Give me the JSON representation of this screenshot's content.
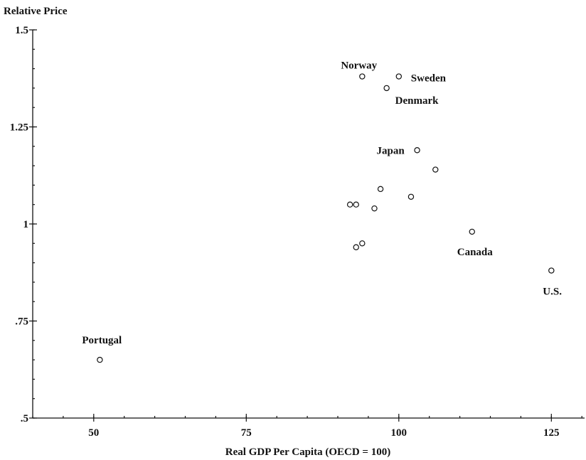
{
  "chart_data": {
    "type": "scatter",
    "title": "",
    "xlabel": "Real GDP Per Capita (OECD = 100)",
    "ylabel": "Relative Price",
    "xlim": [
      40,
      140
    ],
    "ylim": [
      0.5,
      1.5
    ],
    "grid": false,
    "legend": "none",
    "x_ticks": [
      50,
      75,
      100,
      125
    ],
    "x_tick_labels": [
      "50",
      "75",
      "100",
      "125"
    ],
    "x_minor_step": 5,
    "y_ticks": [
      0.5,
      0.75,
      1.0,
      1.25,
      1.5
    ],
    "y_tick_labels": [
      ".5",
      ".75",
      "1",
      "1.25",
      "1.5"
    ],
    "y_minor_step": 0.05,
    "points": [
      {
        "label": "Norway",
        "x": 94,
        "y": 1.38
      },
      {
        "label": "Sweden",
        "x": 100,
        "y": 1.38
      },
      {
        "label": "Denmark",
        "x": 98,
        "y": 1.35
      },
      {
        "label": "Japan",
        "x": 103,
        "y": 1.19
      },
      {
        "label": "",
        "x": 106,
        "y": 1.14
      },
      {
        "label": "",
        "x": 97,
        "y": 1.09
      },
      {
        "label": "",
        "x": 102,
        "y": 1.07
      },
      {
        "label": "",
        "x": 92,
        "y": 1.05
      },
      {
        "label": "",
        "x": 93,
        "y": 1.05
      },
      {
        "label": "",
        "x": 96,
        "y": 1.04
      },
      {
        "label": "Canada",
        "x": 112,
        "y": 0.98
      },
      {
        "label": "",
        "x": 94,
        "y": 0.95
      },
      {
        "label": "",
        "x": 93,
        "y": 0.94
      },
      {
        "label": "U.S.",
        "x": 125,
        "y": 0.88
      },
      {
        "label": "Portugal",
        "x": 51,
        "y": 0.65
      }
    ]
  }
}
